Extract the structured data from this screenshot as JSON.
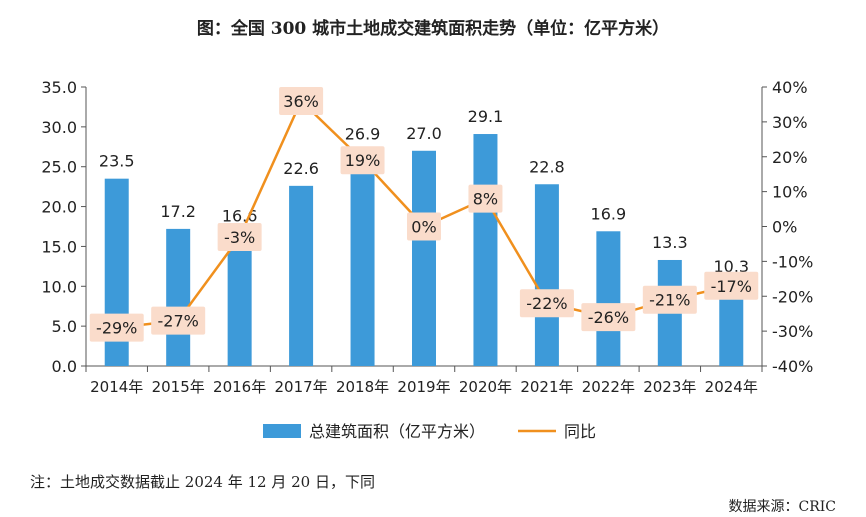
{
  "title": "图：全国 300 城市土地成交建筑面积走势（单位：亿平方米）",
  "footnote": "注：土地成交数据截止 2024 年 12 月 20 日，下同",
  "source": "数据来源：CRIC",
  "chart_data": {
    "type": "bar",
    "categories": [
      "2014年",
      "2015年",
      "2016年",
      "2017年",
      "2018年",
      "2019年",
      "2020年",
      "2021年",
      "2022年",
      "2023年",
      "2024年"
    ],
    "series": [
      {
        "name": "总建筑面积（亿平方米）",
        "type": "bar",
        "axis": "left",
        "color": "#3d9ad9",
        "values": [
          23.5,
          17.2,
          16.6,
          22.6,
          26.9,
          27.0,
          29.1,
          22.8,
          16.9,
          13.3,
          10.3
        ],
        "labels": [
          "23.5",
          "17.2",
          "16.6",
          "22.6",
          "26.9",
          "27.0",
          "29.1",
          "22.8",
          "16.9",
          "13.3",
          "10.3"
        ]
      },
      {
        "name": "同比",
        "type": "line",
        "axis": "right",
        "color": "#f0901e",
        "values": [
          -29,
          -27,
          -3,
          36,
          19,
          0,
          8,
          -22,
          -26,
          -21,
          -17
        ],
        "labels": [
          "-29%",
          "-27%",
          "-3%",
          "36%",
          "19%",
          "0%",
          "8%",
          "-22%",
          "-26%",
          "-21%",
          "-17%"
        ]
      }
    ],
    "y_left": {
      "min": 0,
      "max": 35,
      "ticks": [
        "0.0",
        "5.0",
        "10.0",
        "15.0",
        "20.0",
        "25.0",
        "30.0",
        "35.0"
      ]
    },
    "y_right": {
      "min": -40,
      "max": 40,
      "ticks": [
        "-40%",
        "-30%",
        "-20%",
        "-10%",
        "0%",
        "10%",
        "20%",
        "30%",
        "40%"
      ]
    },
    "legend": "bottom",
    "grid": false
  }
}
